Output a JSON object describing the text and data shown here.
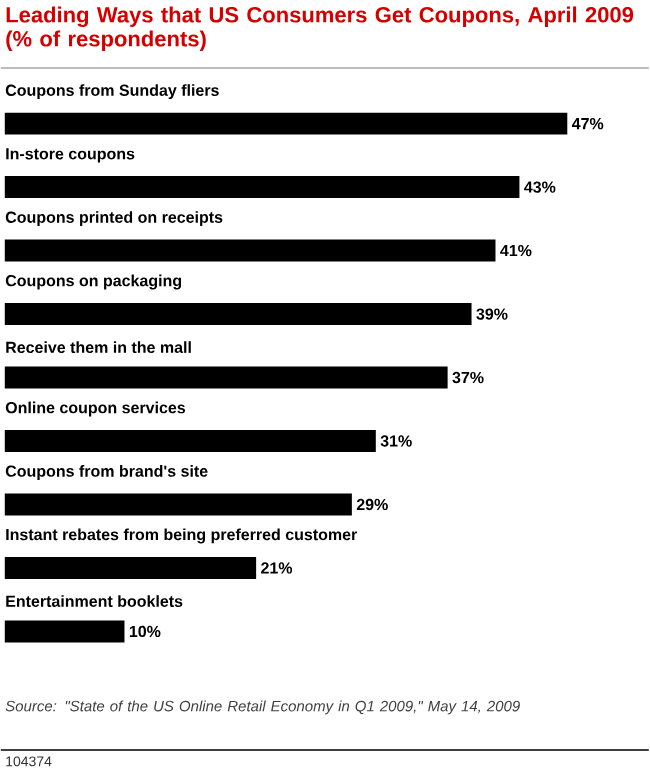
{
  "chart_data": {
    "type": "bar",
    "orientation": "horizontal",
    "title": "Leading Ways that US Consumers Get Coupons, April 2009 (% of respondents)",
    "categories": [
      "Coupons from Sunday fliers",
      "In-store coupons",
      "Coupons printed on receipts",
      "Coupons on packaging",
      "Receive them in the mall",
      "Online coupon services",
      "Coupons from brand's site",
      "Instant rebates from being preferred customer",
      "Entertainment booklets"
    ],
    "values": [
      47,
      43,
      41,
      39,
      37,
      31,
      29,
      21,
      10
    ],
    "value_labels": [
      "47%",
      "43%",
      "41%",
      "39%",
      "37%",
      "31%",
      "29%",
      "21%",
      "10%"
    ],
    "color": "#000000",
    "annotations": [
      "Source: \"State of the US Online Retail Economy in Q1 2009,\" May 14, 2009",
      "104374"
    ]
  }
}
